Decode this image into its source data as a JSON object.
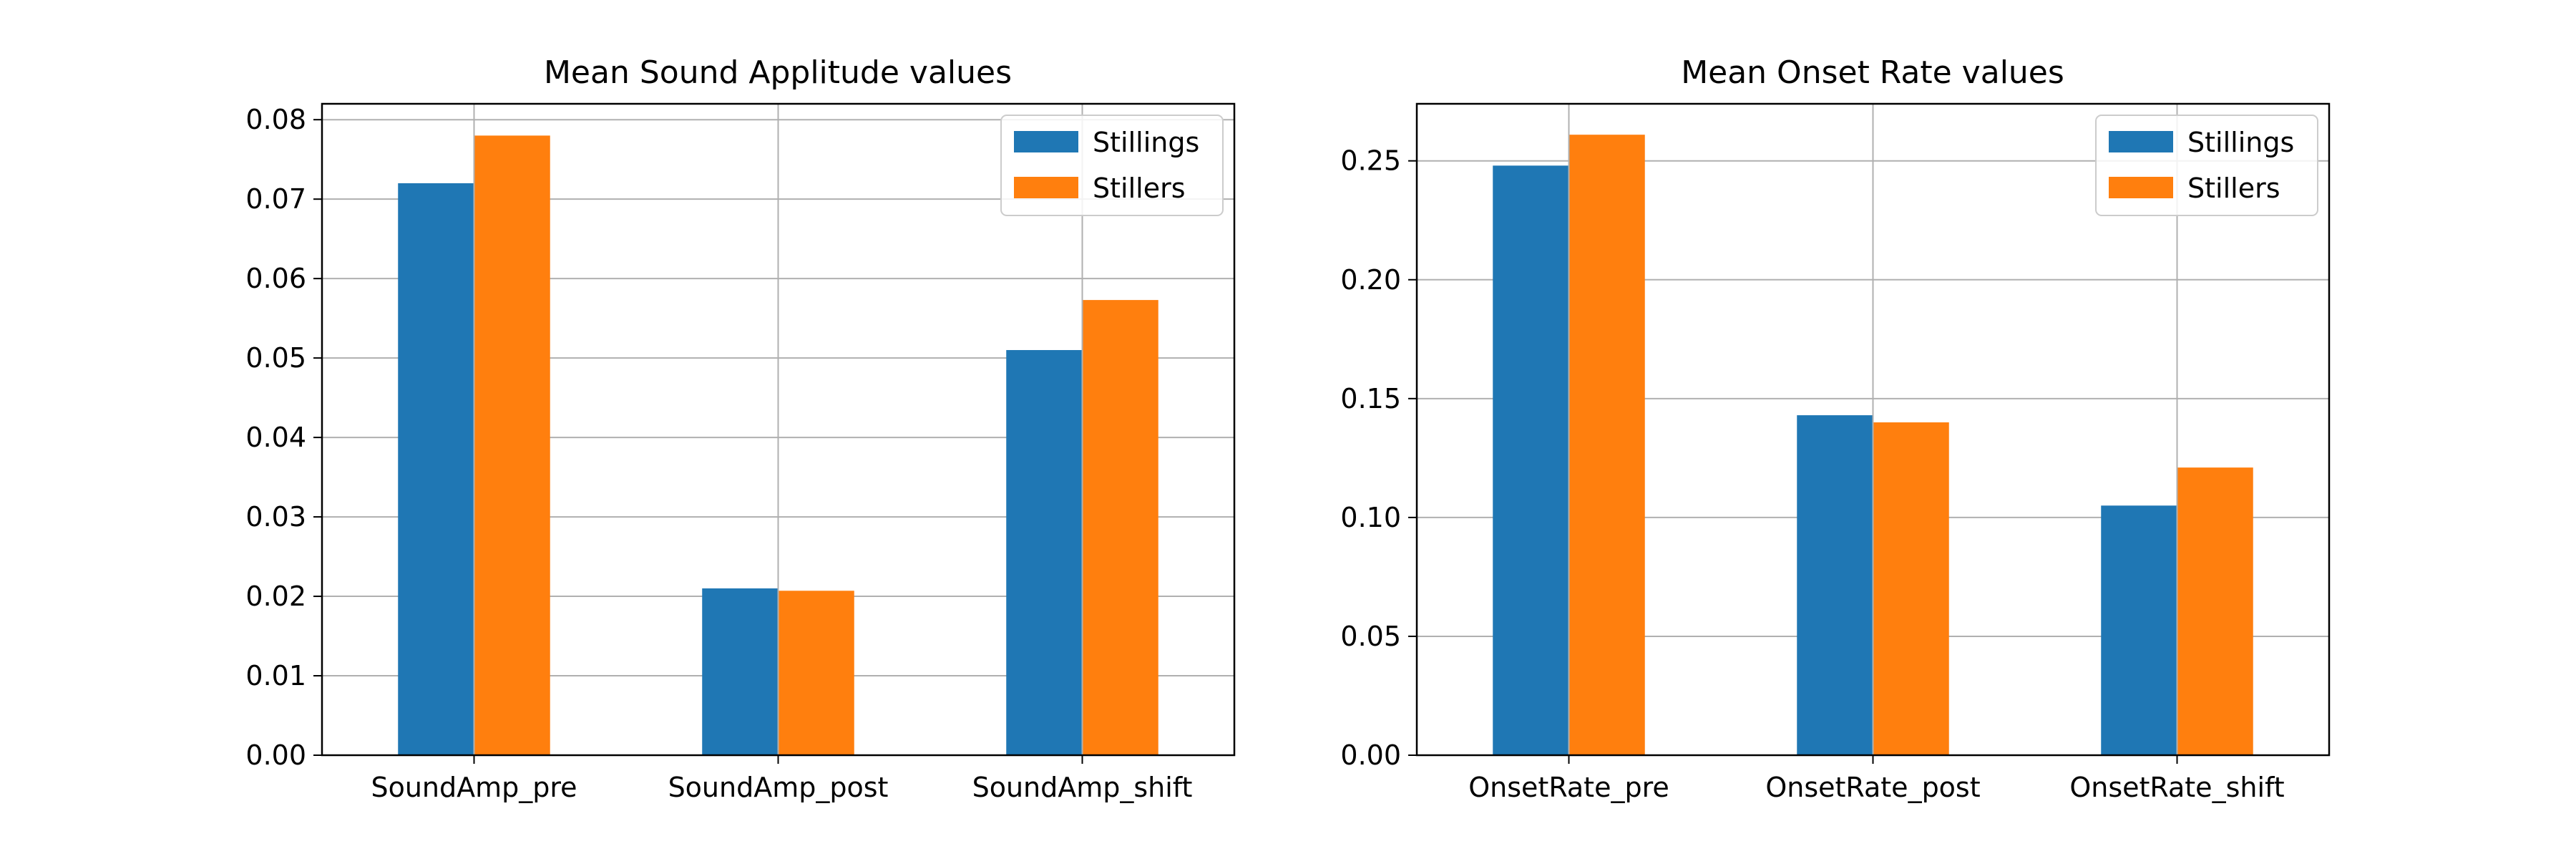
{
  "chart_data": [
    {
      "type": "bar",
      "title": "Mean Sound Applitude values",
      "xlabel": "",
      "ylabel": "",
      "categories": [
        "SoundAmp_pre",
        "SoundAmp_post",
        "SoundAmp_shift"
      ],
      "series": [
        {
          "name": "Stillings",
          "color": "#1f77b4",
          "values": [
            0.072,
            0.021,
            0.051
          ]
        },
        {
          "name": "Stillers",
          "color": "#ff7f0e",
          "values": [
            0.078,
            0.0207,
            0.0573
          ]
        }
      ],
      "ylim": [
        0,
        0.082
      ],
      "yticks": [
        "0.00",
        "0.01",
        "0.02",
        "0.03",
        "0.04",
        "0.05",
        "0.06",
        "0.07",
        "0.08"
      ],
      "grid": true,
      "legend": "upper right"
    },
    {
      "type": "bar",
      "title": "Mean Onset Rate values",
      "xlabel": "",
      "ylabel": "",
      "categories": [
        "OnsetRate_pre",
        "OnsetRate_post",
        "OnsetRate_shift"
      ],
      "series": [
        {
          "name": "Stillings",
          "color": "#1f77b4",
          "values": [
            0.248,
            0.143,
            0.105
          ]
        },
        {
          "name": "Stillers",
          "color": "#ff7f0e",
          "values": [
            0.261,
            0.14,
            0.121
          ]
        }
      ],
      "ylim": [
        0,
        0.274
      ],
      "yticks": [
        "0.00",
        "0.05",
        "0.10",
        "0.15",
        "0.20",
        "0.25"
      ],
      "grid": true,
      "legend": "upper right"
    }
  ]
}
